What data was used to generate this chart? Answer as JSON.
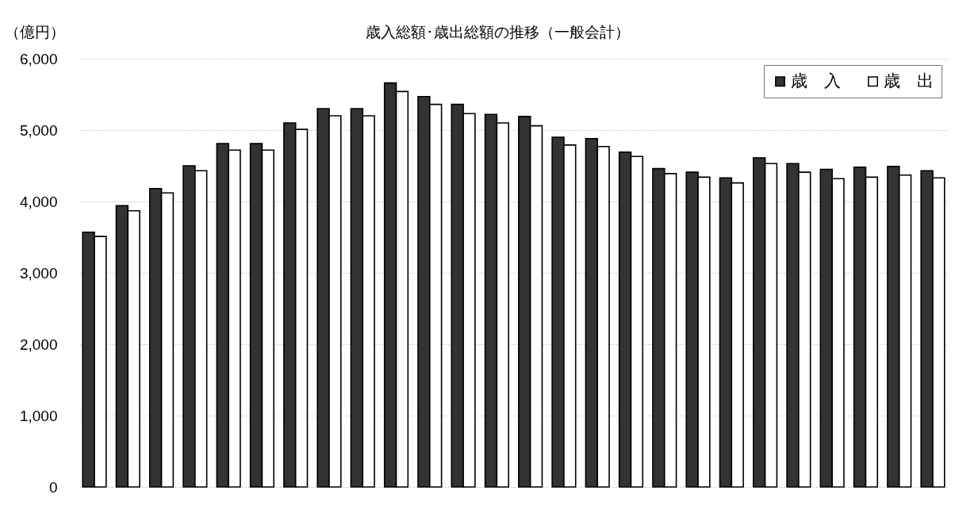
{
  "chart_data": {
    "type": "bar",
    "title": "歳入総額･歳出総額の推移（一般会計）",
    "ylabel": "（億円）",
    "categories": [
      null,
      null,
      null,
      null,
      null,
      null,
      null,
      null,
      null,
      null,
      null,
      null,
      null,
      null,
      null,
      null,
      null,
      null,
      null,
      null,
      null,
      null,
      null,
      null,
      null,
      null
    ],
    "series": [
      {
        "name": "歳　入",
        "color": "#333333",
        "values": [
          3570,
          3940,
          4180,
          4500,
          4810,
          4810,
          5100,
          5300,
          5300,
          5660,
          5470,
          5360,
          5220,
          5190,
          4900,
          4880,
          4690,
          4460,
          4410,
          4330,
          4610,
          4530,
          4450,
          4480,
          4490,
          4430
        ]
      },
      {
        "name": "歳　出",
        "color": "#ffffff",
        "values": [
          3510,
          3870,
          4120,
          4430,
          4720,
          4720,
          5010,
          5200,
          5200,
          5540,
          5360,
          5230,
          5100,
          5060,
          4790,
          4770,
          4630,
          4390,
          4340,
          4260,
          4530,
          4410,
          4320,
          4340,
          4370,
          4330
        ]
      }
    ],
    "ylim": [
      0,
      6000
    ],
    "yticks": [
      0,
      {
        "value": 1000,
        "label": "1,000"
      },
      {
        "value": 2000,
        "label": "2,000"
      },
      {
        "value": 3000,
        "label": "3,000"
      },
      {
        "value": 4000,
        "label": "4,000"
      },
      {
        "value": 5000,
        "label": "5,000"
      },
      {
        "value": 6000,
        "label": "6,000"
      }
    ],
    "grid": "y",
    "legend": "top right"
  }
}
